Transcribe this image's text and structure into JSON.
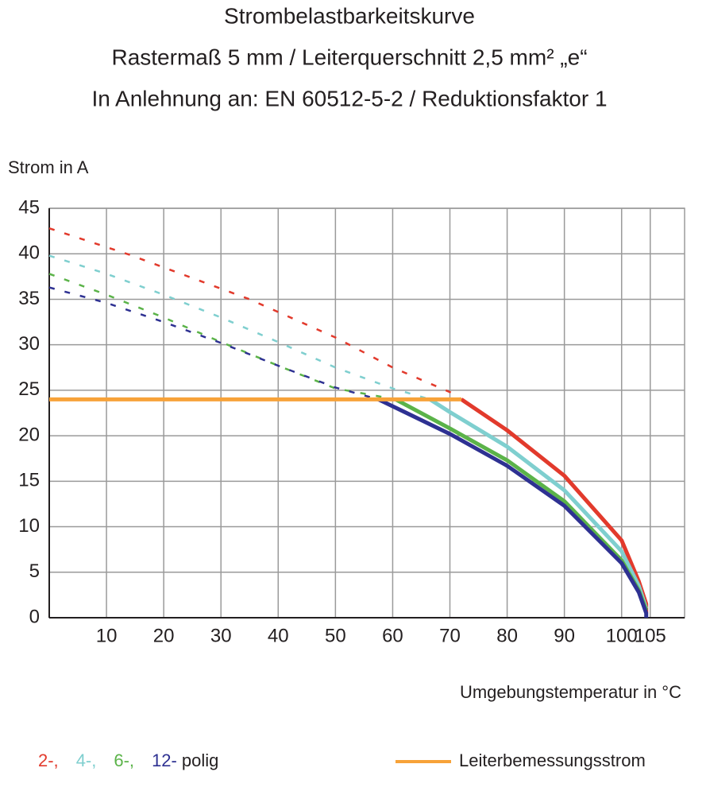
{
  "chart_data": {
    "type": "line",
    "title": "Strombelastbarkeitskurve",
    "subtitle": [
      "Rastermaß 5 mm / Leiterquerschnitt 2,5 mm² „e“",
      "In Anlehnung an: EN 60512-5-2 / Reduktionsfaktor 1"
    ],
    "ylabel": "Strom in A",
    "xlabel": "Umgebungstemperatur in °C",
    "xlim": [
      0,
      111
    ],
    "ylim": [
      0,
      45
    ],
    "xticks": [
      10,
      20,
      30,
      40,
      50,
      60,
      70,
      80,
      90,
      100,
      105
    ],
    "yticks": [
      0,
      5,
      10,
      15,
      20,
      25,
      30,
      35,
      40,
      45
    ],
    "grid": true,
    "legend_suffix": "polig",
    "series": [
      {
        "name": "2-,",
        "color": "#e23a2c",
        "segments": [
          {
            "style": "dashed",
            "x": [
              0,
              14,
              35,
              50,
              60,
              70,
              72
            ],
            "values": [
              42.8,
              39.9,
              35,
              30.8,
              27.5,
              24.8,
              24
            ]
          },
          {
            "style": "solid",
            "x": [
              72,
              80,
              90,
              100,
              103,
              104.3,
              104.3
            ],
            "values": [
              24,
              20.6,
              15.6,
              8.5,
              4,
              1.5,
              0.5
            ]
          }
        ]
      },
      {
        "name": "4-,",
        "color": "#7fcfcf",
        "segments": [
          {
            "style": "dashed",
            "x": [
              0,
              10,
              20,
              30,
              40,
              50,
              60,
              66.5
            ],
            "values": [
              39.8,
              37.8,
              35.5,
              33,
              30.3,
              27.5,
              25.2,
              24
            ]
          },
          {
            "style": "solid",
            "x": [
              66.5,
              70,
              80,
              90,
              100,
              103,
              104.3
            ],
            "values": [
              24,
              22.6,
              18.8,
              14,
              7.3,
              3.5,
              1
            ]
          }
        ]
      },
      {
        "name": "6-,",
        "color": "#5bb349",
        "segments": [
          {
            "style": "dashed",
            "x": [
              0,
              10,
              20,
              30,
              40,
              50,
              60.5
            ],
            "values": [
              37.8,
              35.5,
              33,
              30.3,
              27.7,
              25.2,
              24
            ]
          },
          {
            "style": "solid",
            "x": [
              60.5,
              70,
              80,
              90,
              100,
              103,
              104.3
            ],
            "values": [
              24,
              20.8,
              17.3,
              12.8,
              6.3,
              3,
              0.8
            ]
          }
        ]
      },
      {
        "name": "12-",
        "color": "#2e3192",
        "segments": [
          {
            "style": "dashed",
            "x": [
              0,
              10,
              20,
              30,
              40,
              50,
              57.5
            ],
            "values": [
              36.3,
              34.6,
              32.5,
              30.2,
              27.7,
              25.3,
              24
            ]
          },
          {
            "style": "solid",
            "x": [
              57.5,
              70,
              80,
              90,
              100,
              103,
              104.3,
              104.3
            ],
            "values": [
              24,
              20.2,
              16.7,
              12.3,
              6,
              2.8,
              0.5,
              0
            ]
          }
        ]
      },
      {
        "name": "Leiterbemessungsstrom",
        "color": "#f7a239",
        "segments": [
          {
            "style": "solid",
            "x": [
              0,
              72
            ],
            "values": [
              24,
              24
            ]
          }
        ]
      }
    ]
  }
}
